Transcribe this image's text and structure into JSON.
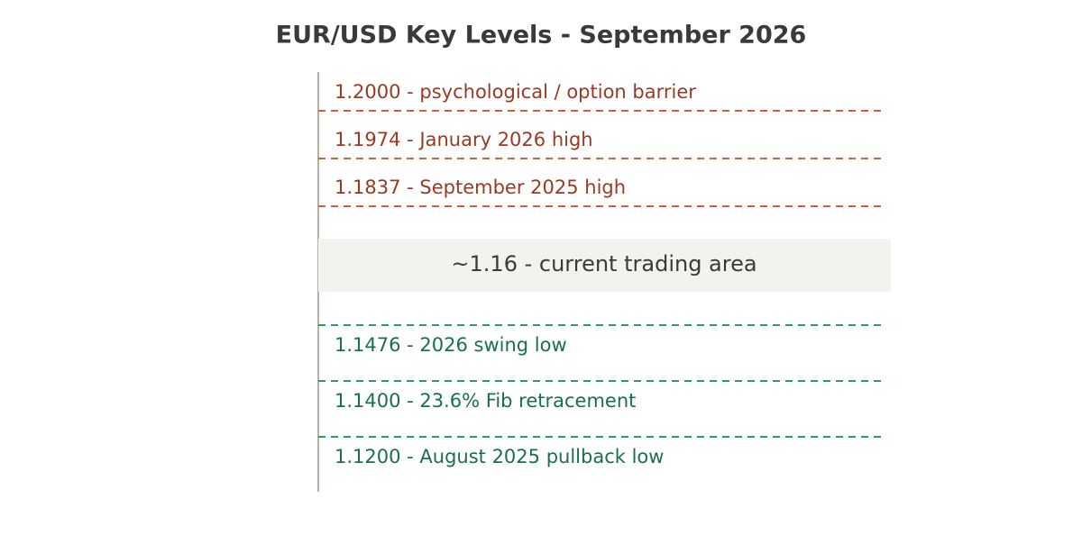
{
  "title": "EUR/USD Key Levels - September 2026",
  "resistance_levels": [
    "1.2000 - psychological / option barrier",
    "1.1974 - January 2026 high",
    "1.1837 - September 2025 high"
  ],
  "current_area": "~1.16 - current trading area",
  "support_levels": [
    "1.1476 - 2026 swing low",
    "1.1400 - 23.6% Fib retracement",
    "1.1200 - August 2025 pullback low"
  ]
}
